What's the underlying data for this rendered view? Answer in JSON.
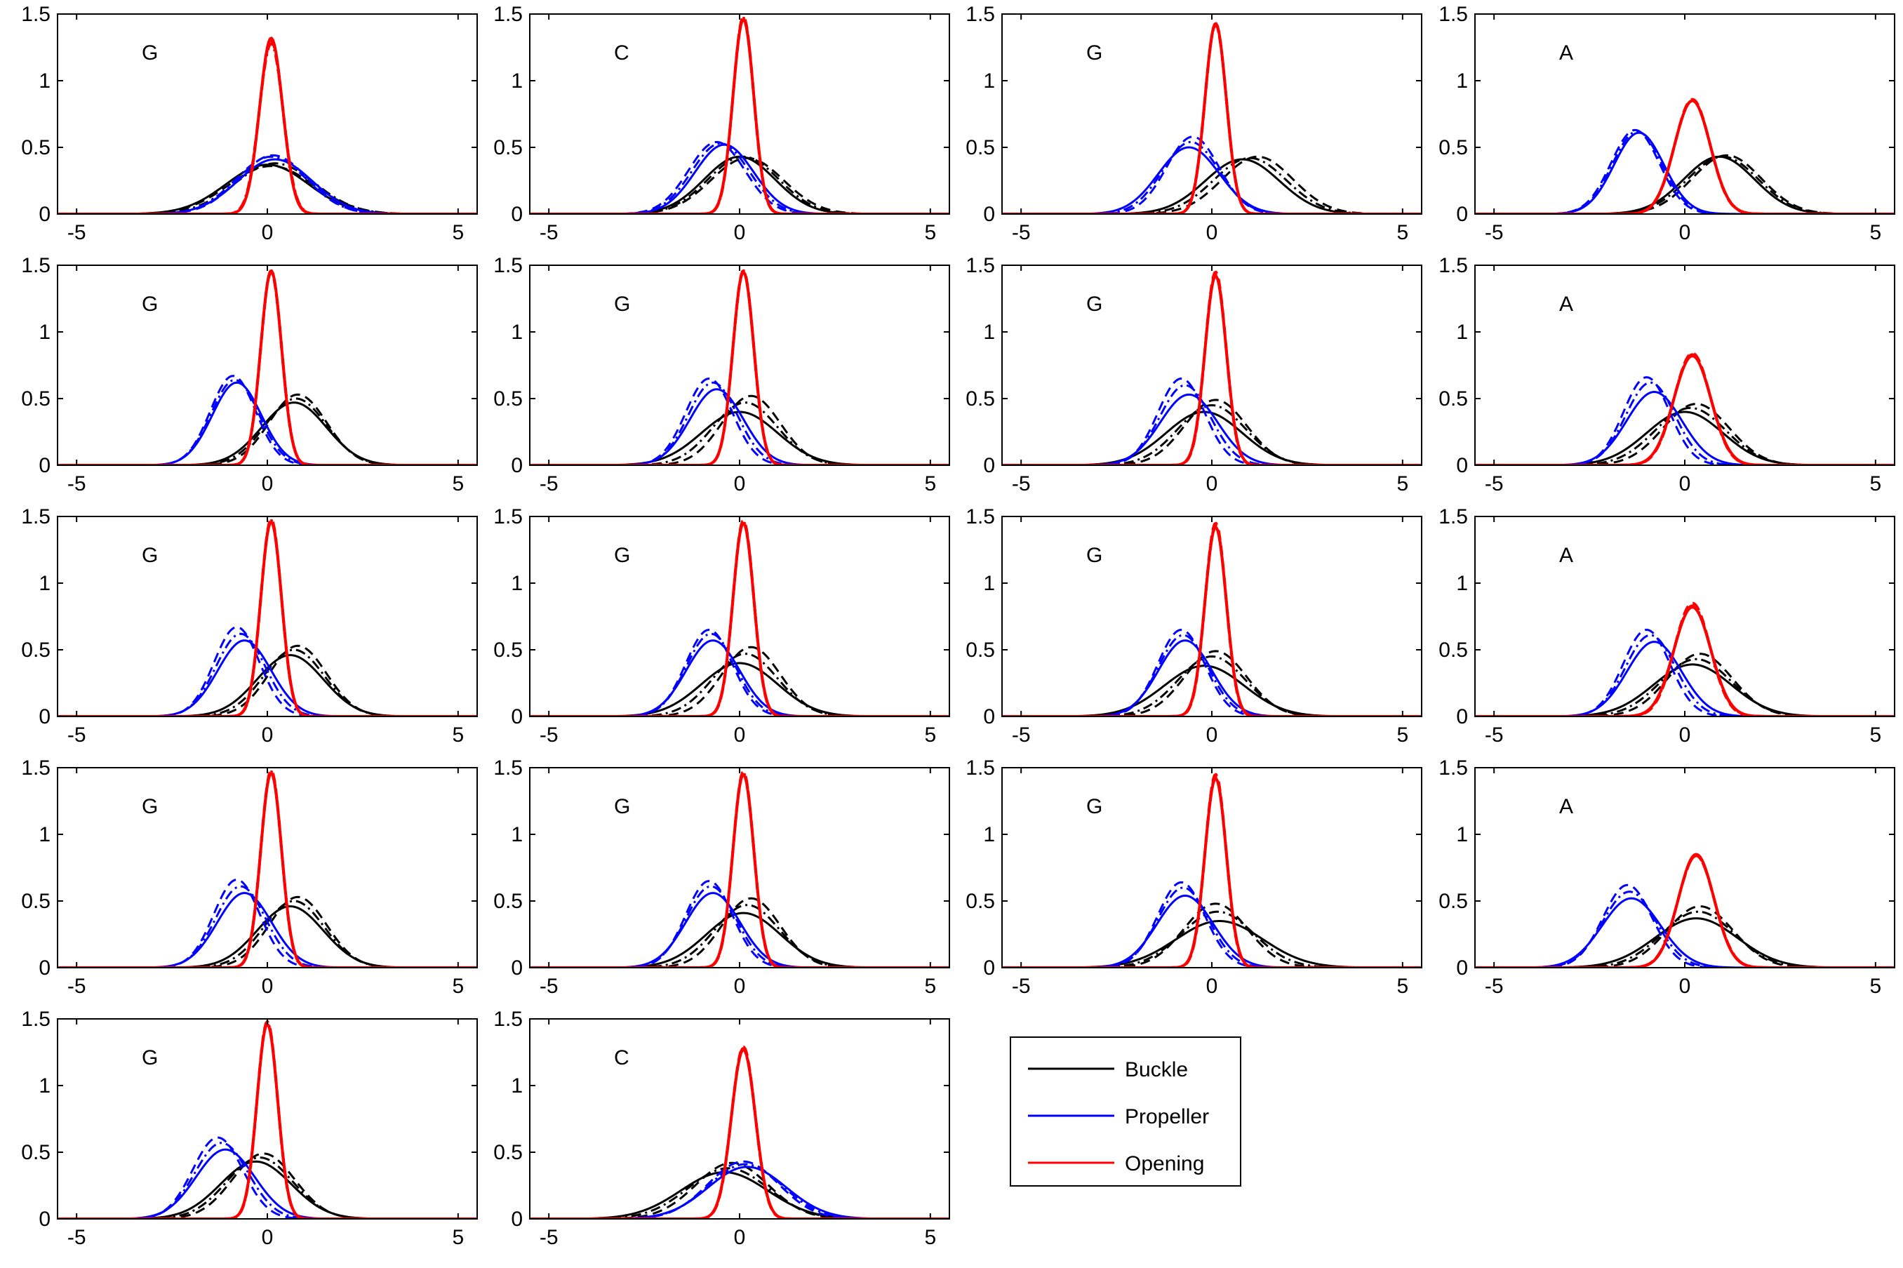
{
  "chart_data": {
    "type": "line",
    "grid_layout": {
      "rows": 5,
      "cols": 4
    },
    "xlim": [
      -5.5,
      5.5
    ],
    "ylim": [
      0,
      1.5
    ],
    "xticks": [
      -5,
      0,
      5
    ],
    "yticks": [
      0,
      0.5,
      1,
      1.5
    ],
    "xtick_labels": [
      "-5",
      "0",
      "5"
    ],
    "ytick_labels": [
      "0",
      "0.5",
      "1",
      "1.5"
    ],
    "grid": false,
    "legend": {
      "placement": "row 5, column 3",
      "entries": [
        {
          "label": "Buckle",
          "color": "#000000"
        },
        {
          "label": "Propeller",
          "color": "#0000ff"
        },
        {
          "label": "Opening",
          "color": "#ff0000"
        }
      ]
    },
    "line_styles": [
      "solid",
      "dashed",
      "dash-dot"
    ],
    "series_colors": {
      "buckle": "#000000",
      "propeller": "#0000ff",
      "opening": "#ff0000"
    },
    "panels": [
      {
        "label": "G",
        "row": 0,
        "col": 0,
        "buckle": [
          [
            0.0,
            0.37
          ],
          [
            0.1,
            0.36
          ],
          [
            0.2,
            0.38
          ]
        ],
        "propeller": [
          [
            0.2,
            0.41
          ],
          [
            0.15,
            0.44
          ],
          [
            0.1,
            0.43
          ]
        ],
        "opening": [
          [
            0.1,
            1.32
          ],
          [
            0.1,
            1.3
          ],
          [
            0.1,
            1.28
          ]
        ]
      },
      {
        "label": "C",
        "row": 0,
        "col": 1,
        "buckle": [
          [
            0.0,
            0.43
          ],
          [
            0.2,
            0.42
          ],
          [
            0.1,
            0.43
          ]
        ],
        "propeller": [
          [
            -0.4,
            0.52
          ],
          [
            -0.6,
            0.54
          ],
          [
            -0.5,
            0.53
          ]
        ],
        "opening": [
          [
            0.1,
            1.46
          ],
          [
            0.1,
            1.48
          ],
          [
            0.1,
            1.47
          ]
        ]
      },
      {
        "label": "G",
        "row": 0,
        "col": 2,
        "buckle": [
          [
            0.8,
            0.41
          ],
          [
            1.2,
            0.43
          ],
          [
            1.0,
            0.42
          ]
        ],
        "propeller": [
          [
            -0.6,
            0.5
          ],
          [
            -0.5,
            0.58
          ],
          [
            -0.55,
            0.54
          ]
        ],
        "opening": [
          [
            0.1,
            1.43
          ],
          [
            0.1,
            1.42
          ],
          [
            0.1,
            1.42
          ]
        ]
      },
      {
        "label": "A",
        "row": 0,
        "col": 3,
        "buckle": [
          [
            0.9,
            0.43
          ],
          [
            1.1,
            0.44
          ],
          [
            1.0,
            0.43
          ]
        ],
        "propeller": [
          [
            -1.2,
            0.61
          ],
          [
            -1.3,
            0.63
          ],
          [
            -1.25,
            0.62
          ]
        ],
        "opening": [
          [
            0.2,
            0.85
          ],
          [
            0.2,
            0.86
          ],
          [
            0.2,
            0.85
          ]
        ]
      },
      {
        "label": "G",
        "row": 1,
        "col": 0,
        "buckle": [
          [
            0.7,
            0.47
          ],
          [
            0.8,
            0.53
          ],
          [
            0.75,
            0.5
          ]
        ],
        "propeller": [
          [
            -0.8,
            0.62
          ],
          [
            -0.9,
            0.67
          ],
          [
            -0.85,
            0.64
          ]
        ],
        "opening": [
          [
            0.1,
            1.46
          ],
          [
            0.1,
            1.45
          ],
          [
            0.1,
            1.45
          ]
        ]
      },
      {
        "label": "G",
        "row": 1,
        "col": 1,
        "buckle": [
          [
            0.0,
            0.4
          ],
          [
            0.3,
            0.52
          ],
          [
            0.15,
            0.47
          ]
        ],
        "propeller": [
          [
            -0.6,
            0.57
          ],
          [
            -0.8,
            0.65
          ],
          [
            -0.7,
            0.62
          ]
        ],
        "opening": [
          [
            0.1,
            1.45
          ],
          [
            0.1,
            1.46
          ],
          [
            0.1,
            1.45
          ]
        ]
      },
      {
        "label": "G",
        "row": 1,
        "col": 2,
        "buckle": [
          [
            -0.2,
            0.4
          ],
          [
            0.1,
            0.49
          ],
          [
            0.0,
            0.45
          ]
        ],
        "propeller": [
          [
            -0.6,
            0.53
          ],
          [
            -0.8,
            0.65
          ],
          [
            -0.7,
            0.6
          ]
        ],
        "opening": [
          [
            0.1,
            1.42
          ],
          [
            0.1,
            1.45
          ],
          [
            0.1,
            1.43
          ]
        ]
      },
      {
        "label": "A",
        "row": 1,
        "col": 3,
        "buckle": [
          [
            0.0,
            0.4
          ],
          [
            0.3,
            0.46
          ],
          [
            0.15,
            0.43
          ]
        ],
        "propeller": [
          [
            -0.8,
            0.55
          ],
          [
            -1.0,
            0.66
          ],
          [
            -0.9,
            0.62
          ]
        ],
        "opening": [
          [
            0.2,
            0.82
          ],
          [
            0.2,
            0.84
          ],
          [
            0.2,
            0.83
          ]
        ]
      },
      {
        "label": "G",
        "row": 2,
        "col": 0,
        "buckle": [
          [
            0.6,
            0.46
          ],
          [
            0.8,
            0.53
          ],
          [
            0.7,
            0.5
          ]
        ],
        "propeller": [
          [
            -0.6,
            0.57
          ],
          [
            -0.8,
            0.67
          ],
          [
            -0.7,
            0.62
          ]
        ],
        "opening": [
          [
            0.1,
            1.46
          ],
          [
            0.1,
            1.48
          ],
          [
            0.1,
            1.47
          ]
        ]
      },
      {
        "label": "G",
        "row": 2,
        "col": 1,
        "buckle": [
          [
            0.0,
            0.4
          ],
          [
            0.3,
            0.52
          ],
          [
            0.15,
            0.47
          ]
        ],
        "propeller": [
          [
            -0.7,
            0.57
          ],
          [
            -0.8,
            0.65
          ],
          [
            -0.75,
            0.62
          ]
        ],
        "opening": [
          [
            0.1,
            1.45
          ],
          [
            0.1,
            1.47
          ],
          [
            0.1,
            1.46
          ]
        ]
      },
      {
        "label": "G",
        "row": 2,
        "col": 2,
        "buckle": [
          [
            -0.2,
            0.38
          ],
          [
            0.1,
            0.49
          ],
          [
            0.0,
            0.45
          ]
        ],
        "propeller": [
          [
            -0.7,
            0.57
          ],
          [
            -0.8,
            0.65
          ],
          [
            -0.75,
            0.61
          ]
        ],
        "opening": [
          [
            0.1,
            1.42
          ],
          [
            0.1,
            1.45
          ],
          [
            0.1,
            1.43
          ]
        ]
      },
      {
        "label": "A",
        "row": 2,
        "col": 3,
        "buckle": [
          [
            0.2,
            0.39
          ],
          [
            0.4,
            0.47
          ],
          [
            0.3,
            0.43
          ]
        ],
        "propeller": [
          [
            -0.8,
            0.56
          ],
          [
            -1.0,
            0.65
          ],
          [
            -0.9,
            0.61
          ]
        ],
        "opening": [
          [
            0.2,
            0.82
          ],
          [
            0.2,
            0.85
          ],
          [
            0.2,
            0.83
          ]
        ]
      },
      {
        "label": "G",
        "row": 3,
        "col": 0,
        "buckle": [
          [
            0.6,
            0.46
          ],
          [
            0.8,
            0.53
          ],
          [
            0.7,
            0.5
          ]
        ],
        "propeller": [
          [
            -0.6,
            0.56
          ],
          [
            -0.8,
            0.66
          ],
          [
            -0.7,
            0.61
          ]
        ],
        "opening": [
          [
            0.1,
            1.46
          ],
          [
            0.1,
            1.48
          ],
          [
            0.1,
            1.47
          ]
        ]
      },
      {
        "label": "G",
        "row": 3,
        "col": 1,
        "buckle": [
          [
            0.1,
            0.41
          ],
          [
            0.3,
            0.52
          ],
          [
            0.2,
            0.47
          ]
        ],
        "propeller": [
          [
            -0.7,
            0.56
          ],
          [
            -0.8,
            0.65
          ],
          [
            -0.75,
            0.61
          ]
        ],
        "opening": [
          [
            0.1,
            1.45
          ],
          [
            0.1,
            1.47
          ],
          [
            0.1,
            1.46
          ]
        ]
      },
      {
        "label": "G",
        "row": 3,
        "col": 2,
        "buckle": [
          [
            0.2,
            0.35
          ],
          [
            0.1,
            0.48
          ],
          [
            0.15,
            0.42
          ]
        ],
        "propeller": [
          [
            -0.7,
            0.54
          ],
          [
            -0.8,
            0.64
          ],
          [
            -0.75,
            0.6
          ]
        ],
        "opening": [
          [
            0.1,
            1.42
          ],
          [
            0.1,
            1.45
          ],
          [
            0.1,
            1.43
          ]
        ]
      },
      {
        "label": "A",
        "row": 3,
        "col": 3,
        "buckle": [
          [
            0.3,
            0.37
          ],
          [
            0.4,
            0.46
          ],
          [
            0.35,
            0.42
          ]
        ],
        "propeller": [
          [
            -1.4,
            0.52
          ],
          [
            -1.5,
            0.62
          ],
          [
            -1.45,
            0.57
          ]
        ],
        "opening": [
          [
            0.3,
            0.85
          ],
          [
            0.3,
            0.84
          ],
          [
            0.3,
            0.84
          ]
        ]
      },
      {
        "label": "G",
        "row": 4,
        "col": 0,
        "buckle": [
          [
            -0.3,
            0.43
          ],
          [
            -0.1,
            0.49
          ],
          [
            -0.2,
            0.46
          ]
        ],
        "propeller": [
          [
            -1.1,
            0.52
          ],
          [
            -1.3,
            0.61
          ],
          [
            -1.2,
            0.57
          ]
        ],
        "opening": [
          [
            0.0,
            1.46
          ],
          [
            0.0,
            1.48
          ],
          [
            0.0,
            1.47
          ]
        ]
      },
      {
        "label": "C",
        "row": 4,
        "col": 1,
        "buckle": [
          [
            -0.4,
            0.35
          ],
          [
            -0.2,
            0.42
          ],
          [
            -0.3,
            0.38
          ]
        ],
        "propeller": [
          [
            0.2,
            0.39
          ],
          [
            0.1,
            0.43
          ],
          [
            0.15,
            0.41
          ]
        ],
        "opening": [
          [
            0.1,
            1.27
          ],
          [
            0.1,
            1.29
          ],
          [
            0.1,
            1.28
          ]
        ]
      }
    ]
  }
}
